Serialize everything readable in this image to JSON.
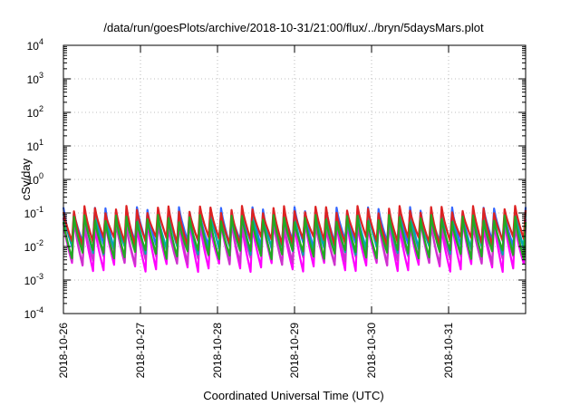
{
  "chart_data": {
    "type": "line",
    "title": "/data/run/goesPlots/archive/2018-10-31/21:00/flux/../bryn/5daysMars.plot",
    "xlabel": "Coordinated Universal Time (UTC)",
    "ylabel": "cSv/day",
    "x_ticks": [
      "2018-10-26",
      "2018-10-27",
      "2018-10-28",
      "2018-10-29",
      "2018-10-30",
      "2018-10-31"
    ],
    "xlim": [
      "2018-10-26T00:00",
      "2018-11-01T00:00"
    ],
    "y_scale": "log",
    "ylim": [
      0.0001,
      10000
    ],
    "y_ticks": [
      {
        "base": "10",
        "exp": "-4"
      },
      {
        "base": "10",
        "exp": "-3"
      },
      {
        "base": "10",
        "exp": "-2"
      },
      {
        "base": "10",
        "exp": "-1"
      },
      {
        "base": "10",
        "exp": "0"
      },
      {
        "base": "10",
        "exp": "1"
      },
      {
        "base": "10",
        "exp": "2"
      },
      {
        "base": "10",
        "exp": "3"
      },
      {
        "base": "10",
        "exp": "4"
      }
    ],
    "grid": true,
    "cycles_per_day": 7.4,
    "series": [
      {
        "color": "#ff00ff",
        "peak": 0.05,
        "trough": 0.0025
      },
      {
        "color": "#cc33cc",
        "peak": 0.06,
        "trough": 0.004
      },
      {
        "color": "#3366ff",
        "peak": 0.12,
        "trough": 0.012
      },
      {
        "color": "#00aaaa",
        "peak": 0.09,
        "trough": 0.008
      },
      {
        "color": "#dd2222",
        "peak": 0.13,
        "trough": 0.015
      },
      {
        "color": "#22aa22",
        "peak": 0.07,
        "trough": 0.006
      }
    ]
  }
}
